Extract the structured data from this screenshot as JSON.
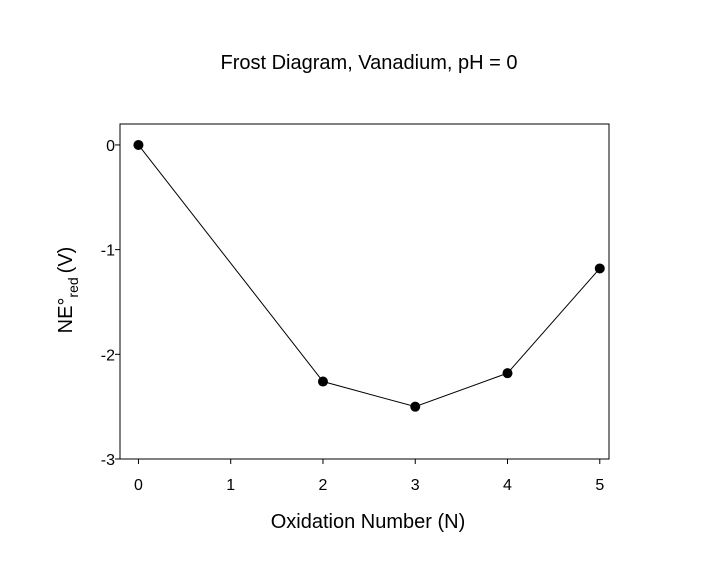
{
  "chart_data": {
    "type": "line",
    "title": "Frost Diagram, Vanadium, pH = 0",
    "x_label": "Oxidation Number (N)",
    "y_label": "NE°",
    "y_label_subscript": "red",
    "y_label_suffix": "(V)",
    "x": [
      0,
      2,
      3,
      4,
      5
    ],
    "series": [
      {
        "color": "#000000",
        "values": [
          0,
          -2.26,
          -2.5,
          -2.18,
          -1.18
        ]
      }
    ],
    "xlim": [
      -0.2,
      5.1
    ],
    "xticks": [
      0,
      1,
      2,
      3,
      4,
      5
    ],
    "ylim": [
      -3,
      0.2
    ],
    "yticks": [
      0,
      -1,
      -2,
      -3
    ],
    "grid": false
  }
}
